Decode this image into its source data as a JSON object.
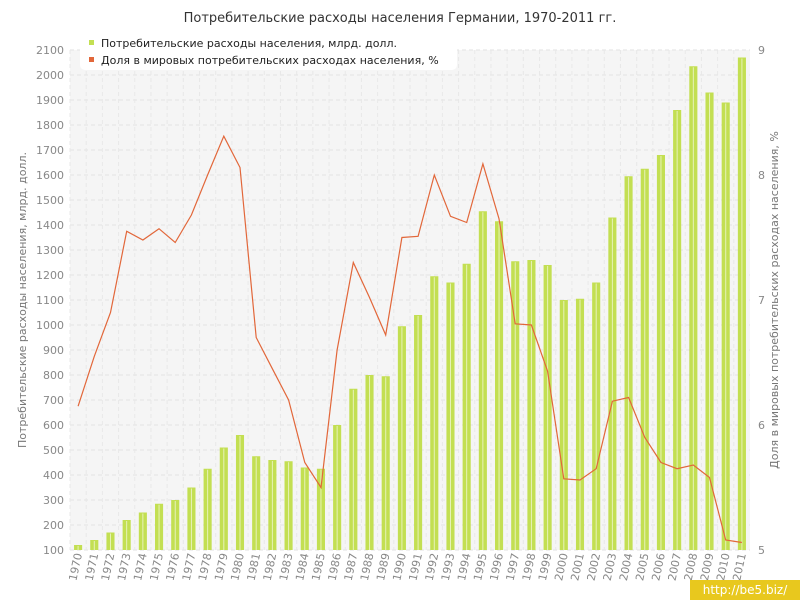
{
  "chart_data": {
    "type": "bar",
    "title": "Потребительские расходы населения Германии, 1970-2011 гг.",
    "ylabel": "Потребительские расходы населения, млрд. долл.",
    "y2label": "Доля в мировых потребительских расходах населения, %",
    "ylim": [
      100,
      2100
    ],
    "y2lim": [
      5,
      9
    ],
    "yticks": [
      "100",
      "200",
      "300",
      "400",
      "500",
      "600",
      "700",
      "800",
      "900",
      "1000",
      "1100",
      "1200",
      "1300",
      "1400",
      "1500",
      "1600",
      "1700",
      "1800",
      "1900",
      "2000",
      "2100"
    ],
    "y2ticks": [
      "5",
      "6",
      "7",
      "8",
      "9"
    ],
    "grid": true,
    "legend_position": "top-left",
    "categories": [
      "1970",
      "1971",
      "1972",
      "1973",
      "1974",
      "1975",
      "1976",
      "1977",
      "1978",
      "1979",
      "1980",
      "1981",
      "1982",
      "1983",
      "1984",
      "1985",
      "1986",
      "1987",
      "1988",
      "1989",
      "1990",
      "1991",
      "1992",
      "1993",
      "1994",
      "1995",
      "1996",
      "1997",
      "1998",
      "1999",
      "2000",
      "2001",
      "2002",
      "2003",
      "2004",
      "2005",
      "2006",
      "2007",
      "2008",
      "2009",
      "2010",
      "2011"
    ],
    "series": [
      {
        "name": "Потребительские расходы населения, млрд. долл.",
        "type": "bar",
        "axis": "left",
        "color": "#c3df52",
        "values": [
          120,
          140,
          170,
          220,
          250,
          285,
          300,
          350,
          425,
          510,
          560,
          475,
          460,
          455,
          430,
          425,
          600,
          745,
          800,
          795,
          995,
          1040,
          1195,
          1170,
          1245,
          1455,
          1415,
          1255,
          1260,
          1240,
          1100,
          1105,
          1170,
          1430,
          1595,
          1625,
          1680,
          1860,
          2035,
          1930,
          1890,
          2070
        ]
      },
      {
        "name": "Доля в мировых потребительских расходах населения, %",
        "type": "line",
        "axis": "right",
        "color": "#e2673a",
        "values": [
          6.15,
          6.55,
          6.9,
          7.55,
          7.48,
          7.57,
          7.46,
          7.68,
          8.0,
          8.31,
          8.06,
          6.7,
          6.45,
          6.2,
          5.7,
          5.5,
          6.6,
          7.3,
          7.02,
          6.72,
          7.5,
          7.51,
          8.0,
          7.67,
          7.62,
          8.09,
          7.65,
          6.81,
          6.8,
          6.43,
          5.57,
          5.56,
          5.65,
          6.19,
          6.22,
          5.9,
          5.7,
          5.65,
          5.68,
          5.58,
          5.08,
          5.06
        ]
      }
    ]
  },
  "watermark": "http://be5.biz/"
}
